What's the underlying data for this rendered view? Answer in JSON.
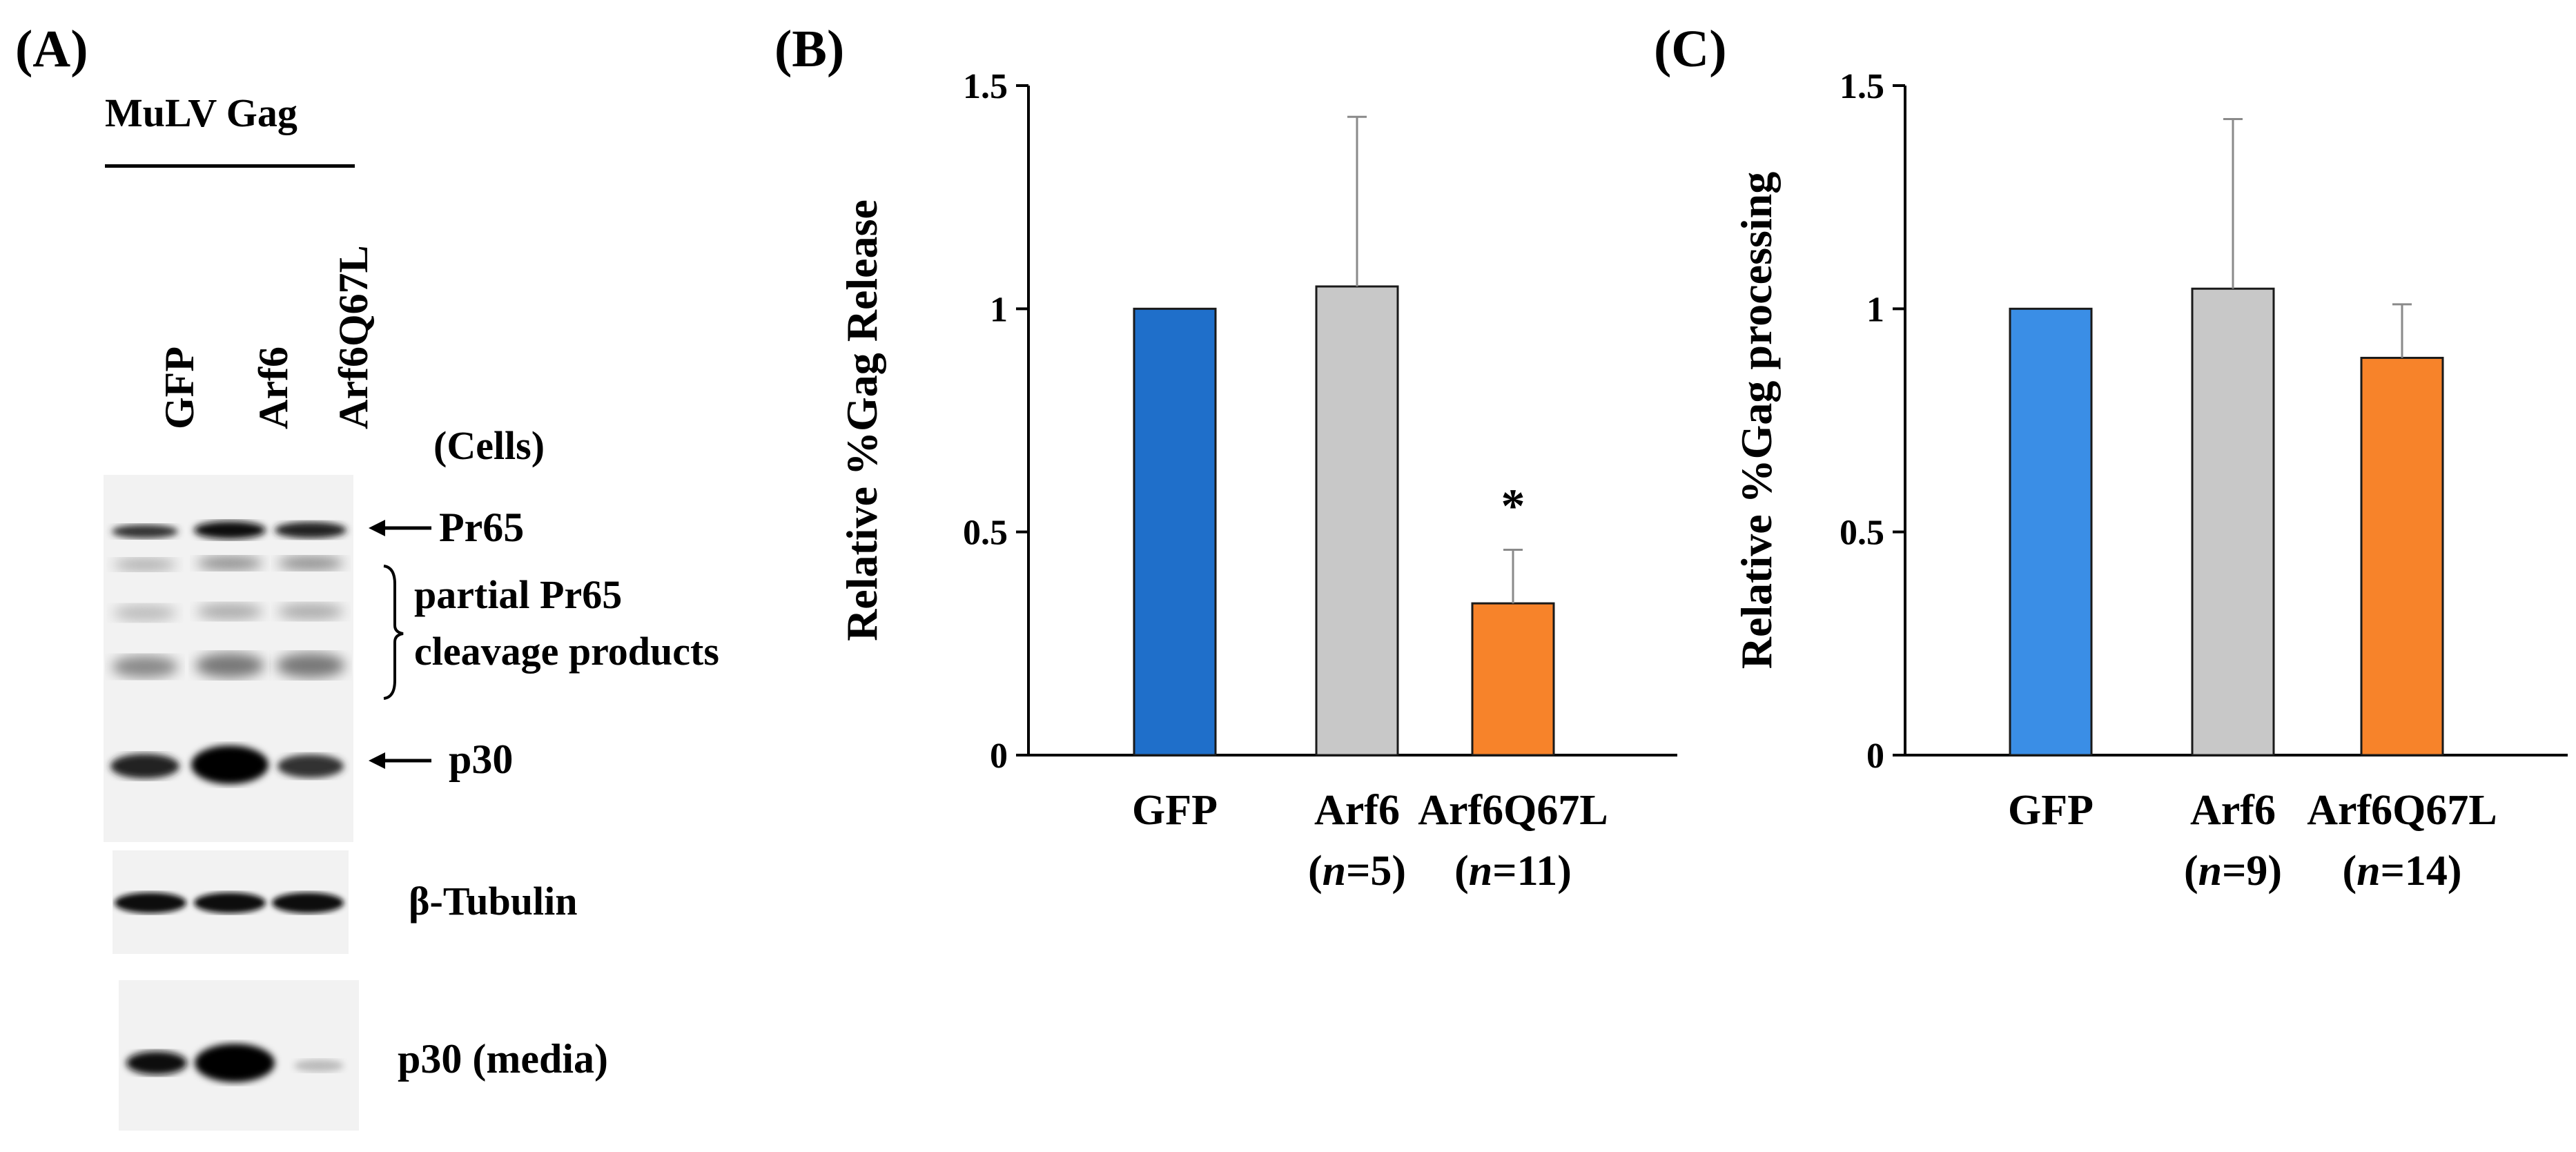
{
  "panels": {
    "a": {
      "label": "(A)",
      "title": "MuLV Gag",
      "lanes": [
        "GFP",
        "Arf6",
        "Arf6Q67L"
      ],
      "cells_label": "(Cells)",
      "band_labels": {
        "pr65": "Pr65",
        "partial_1": "partial Pr65",
        "partial_2": "cleavage products",
        "p30": "p30",
        "tubulin": "β-Tubulin",
        "media": "p30 (media)"
      }
    },
    "b": {
      "label": "(B)"
    },
    "c": {
      "label": "(C)"
    }
  },
  "chart_data": [
    {
      "type": "bar",
      "panel": "B",
      "ylabel": "Relative %Gag Release",
      "ylim": [
        0,
        1.5
      ],
      "yticks": [
        "0",
        "0.5",
        "1",
        "1.5"
      ],
      "categories": [
        "GFP",
        "Arf6",
        "Arf6Q67L"
      ],
      "category_n": [
        "",
        "(n=5)",
        "(n=11)"
      ],
      "values": [
        1.0,
        1.05,
        0.34
      ],
      "errors": [
        0,
        0.38,
        0.12
      ],
      "colors": [
        "#1f6fca",
        "#c8c8c8",
        "#f7832a"
      ],
      "annotations": [
        "",
        "",
        "*"
      ]
    },
    {
      "type": "bar",
      "panel": "C",
      "ylabel": "Relative %Gag processing",
      "ylim": [
        0,
        1.5
      ],
      "yticks": [
        "0",
        "0.5",
        "1",
        "1.5"
      ],
      "categories": [
        "GFP",
        "Arf6",
        "Arf6Q67L"
      ],
      "category_n": [
        "",
        "(n=9)",
        "(n=14)"
      ],
      "values": [
        1.0,
        1.045,
        0.89
      ],
      "errors": [
        0,
        0.38,
        0.12
      ],
      "colors": [
        "#3a8ee6",
        "#c8c8c8",
        "#f7832a"
      ],
      "annotations": [
        "",
        "",
        ""
      ]
    }
  ]
}
